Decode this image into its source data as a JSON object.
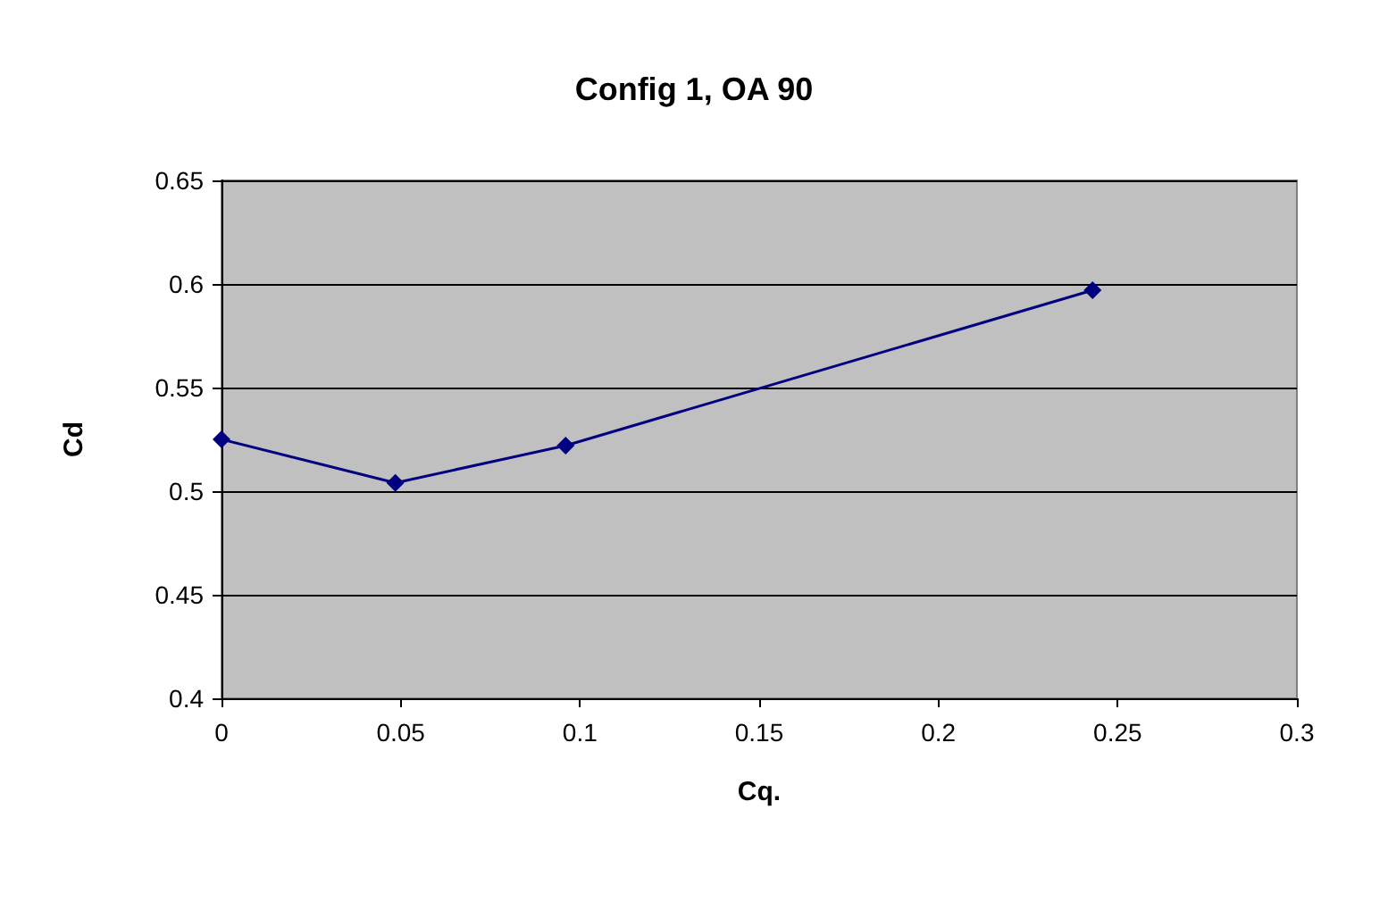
{
  "chart_data": {
    "type": "line",
    "title": "Config 1, OA 90",
    "xlabel": "Cq.",
    "ylabel": "Cd",
    "x": [
      0,
      0.0485,
      0.096,
      0.243
    ],
    "series": [
      {
        "color": "#000080",
        "values": [
          0.525,
          0.504,
          0.522,
          0.597
        ]
      }
    ],
    "xlim": [
      0,
      0.3
    ],
    "xticks": [
      0,
      0.05,
      0.1,
      0.15,
      0.2,
      0.25,
      0.3
    ],
    "ylim": [
      0.4,
      0.65
    ],
    "yticks": [
      0.4,
      0.45,
      0.5,
      0.55,
      0.6,
      0.65
    ],
    "grid": "y",
    "marker": "diamond",
    "line_style": "solid"
  }
}
